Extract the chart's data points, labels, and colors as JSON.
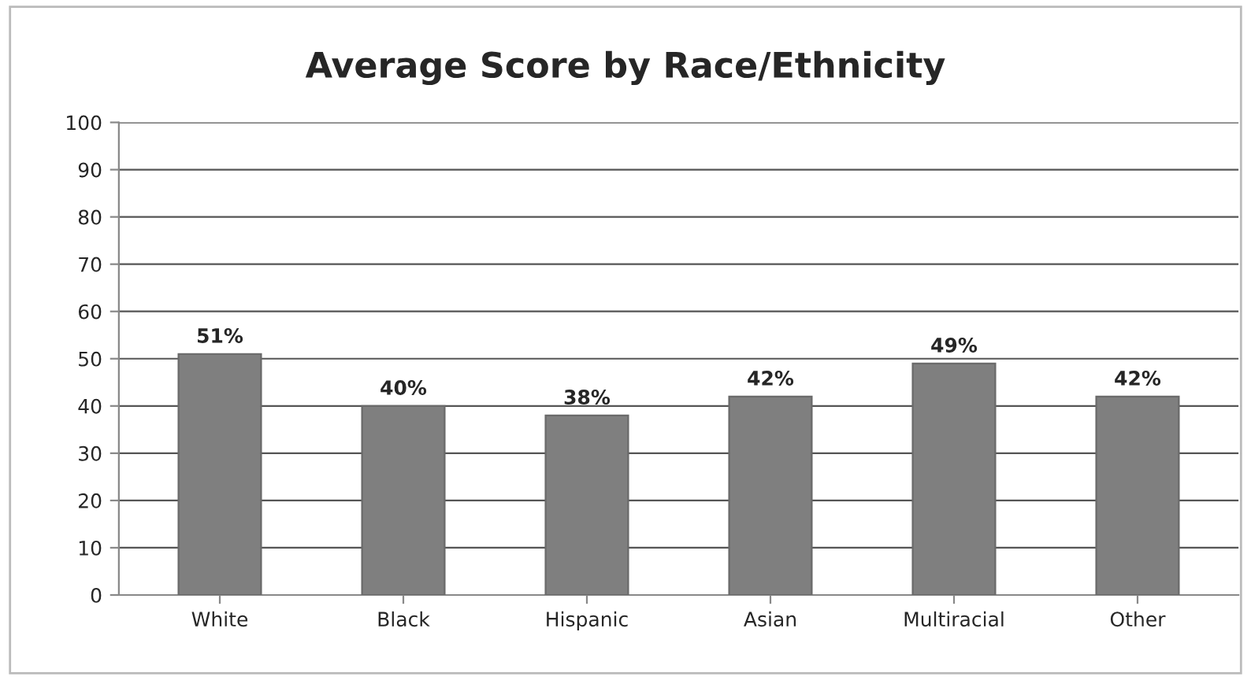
{
  "chart_data": {
    "type": "bar",
    "title": "Average Score by Race/Ethnicity",
    "categories": [
      "White",
      "Black",
      "Hispanic",
      "Asian",
      "Multiracial",
      "Other"
    ],
    "values": [
      51,
      40,
      38,
      42,
      49,
      42
    ],
    "value_labels": [
      "51%",
      "40%",
      "38%",
      "42%",
      "49%",
      "42%"
    ],
    "color": "#7f7f7f",
    "ylim": [
      0,
      100
    ],
    "yticks": [
      0,
      10,
      20,
      30,
      40,
      50,
      60,
      70,
      80,
      90,
      100
    ],
    "grid": "y",
    "legend": false
  }
}
